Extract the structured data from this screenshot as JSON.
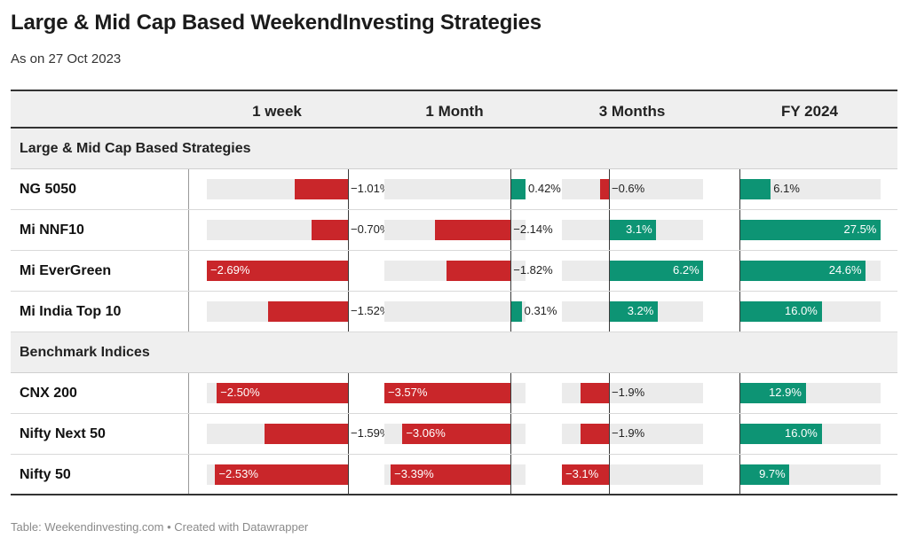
{
  "title": "Large & Mid Cap Based WeekendInvesting Strategies",
  "subtitle": "As on 27 Oct 2023",
  "footer": "Table: Weekendinvesting.com • Created with Datawrapper",
  "colors": {
    "negative": "#c9262a",
    "positive": "#0d9474",
    "track": "#ebebeb"
  },
  "chart_data": {
    "type": "table",
    "columns": [
      "1 week",
      "1 Month",
      "3 Months",
      "FY 2024"
    ],
    "column_ranges": [
      [
        -2.69,
        0
      ],
      [
        -3.57,
        0.42
      ],
      [
        -3.1,
        6.2
      ],
      [
        0,
        27.5
      ]
    ],
    "groups": [
      {
        "name": "Large & Mid Cap Based Strategies",
        "rows": [
          {
            "name": "NG 5050",
            "values": [
              -1.01,
              0.42,
              -0.6,
              6.1
            ],
            "labels": [
              "−1.01%",
              "0.42%",
              "−0.6%",
              "6.1%"
            ]
          },
          {
            "name": "Mi NNF10",
            "values": [
              -0.7,
              -2.14,
              3.1,
              27.5
            ],
            "labels": [
              "−0.70%",
              "−2.14%",
              "3.1%",
              "27.5%"
            ]
          },
          {
            "name": "Mi EverGreen",
            "values": [
              -2.69,
              -1.82,
              6.2,
              24.6
            ],
            "labels": [
              "−2.69%",
              "−1.82%",
              "6.2%",
              "24.6%"
            ]
          },
          {
            "name": "Mi India Top 10",
            "values": [
              -1.52,
              0.31,
              3.2,
              16.0
            ],
            "labels": [
              "−1.52%",
              "0.31%",
              "3.2%",
              "16.0%"
            ]
          }
        ]
      },
      {
        "name": "Benchmark Indices",
        "rows": [
          {
            "name": "CNX 200",
            "values": [
              -2.5,
              -3.57,
              -1.9,
              12.9
            ],
            "labels": [
              "−2.50%",
              "−3.57%",
              "−1.9%",
              "12.9%"
            ]
          },
          {
            "name": "Nifty Next 50",
            "values": [
              -1.59,
              -3.06,
              -1.9,
              16.0
            ],
            "labels": [
              "−1.59%",
              "−3.06%",
              "−1.9%",
              "16.0%"
            ]
          },
          {
            "name": "Nifty 50",
            "values": [
              -2.53,
              -3.39,
              -3.1,
              9.7
            ],
            "labels": [
              "−2.53%",
              "−3.39%",
              "−3.1%",
              "9.7%"
            ]
          }
        ]
      }
    ]
  }
}
